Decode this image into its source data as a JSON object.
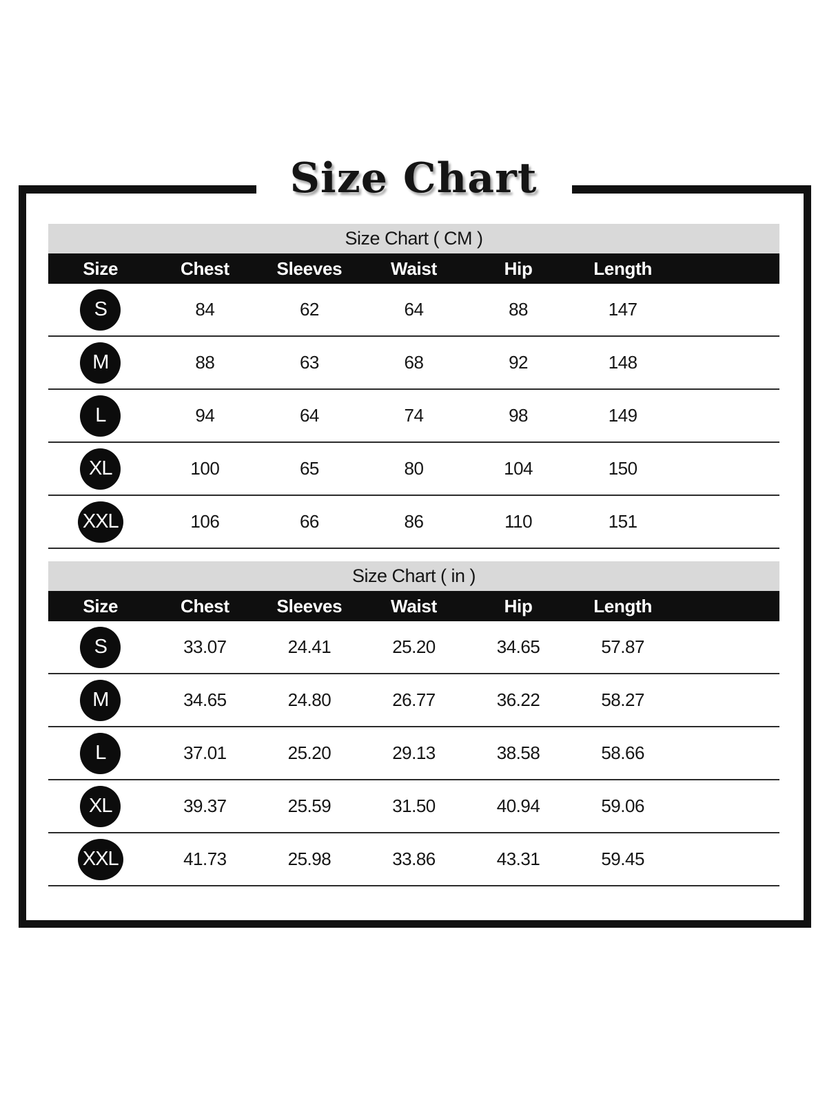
{
  "title": "Size Chart",
  "tables": [
    {
      "caption": "Size Chart ( CM )",
      "columns": [
        "Size",
        "Chest",
        "Sleeves",
        "Waist",
        "Hip",
        "Length"
      ],
      "rows": [
        {
          "size": "S",
          "values": [
            "84",
            "62",
            "64",
            "88",
            "147"
          ]
        },
        {
          "size": "M",
          "values": [
            "88",
            "63",
            "68",
            "92",
            "148"
          ]
        },
        {
          "size": "L",
          "values": [
            "94",
            "64",
            "74",
            "98",
            "149"
          ]
        },
        {
          "size": "XL",
          "values": [
            "100",
            "65",
            "80",
            "104",
            "150"
          ]
        },
        {
          "size": "XXL",
          "values": [
            "106",
            "66",
            "86",
            "110",
            "151"
          ]
        }
      ]
    },
    {
      "caption": "Size Chart ( in )",
      "columns": [
        "Size",
        "Chest",
        "Sleeves",
        "Waist",
        "Hip",
        "Length"
      ],
      "rows": [
        {
          "size": "S",
          "values": [
            "33.07",
            "24.41",
            "25.20",
            "34.65",
            "57.87"
          ]
        },
        {
          "size": "M",
          "values": [
            "34.65",
            "24.80",
            "26.77",
            "36.22",
            "58.27"
          ]
        },
        {
          "size": "L",
          "values": [
            "37.01",
            "25.20",
            "29.13",
            "38.58",
            "58.66"
          ]
        },
        {
          "size": "XL",
          "values": [
            "39.37",
            "25.59",
            "31.50",
            "40.94",
            "59.06"
          ]
        },
        {
          "size": "XXL",
          "values": [
            "41.73",
            "25.98",
            "33.86",
            "43.31",
            "59.45"
          ]
        }
      ]
    }
  ],
  "colors": {
    "frame": "#111111",
    "title_text": "#151515",
    "caption_bg": "#d9d9d9",
    "header_bg": "#0f0f0f",
    "header_text": "#ffffff",
    "cell_text": "#161616",
    "separator": "#2b2b2b",
    "badge_bg": "#0c0c0c",
    "badge_text": "#ffffff"
  }
}
